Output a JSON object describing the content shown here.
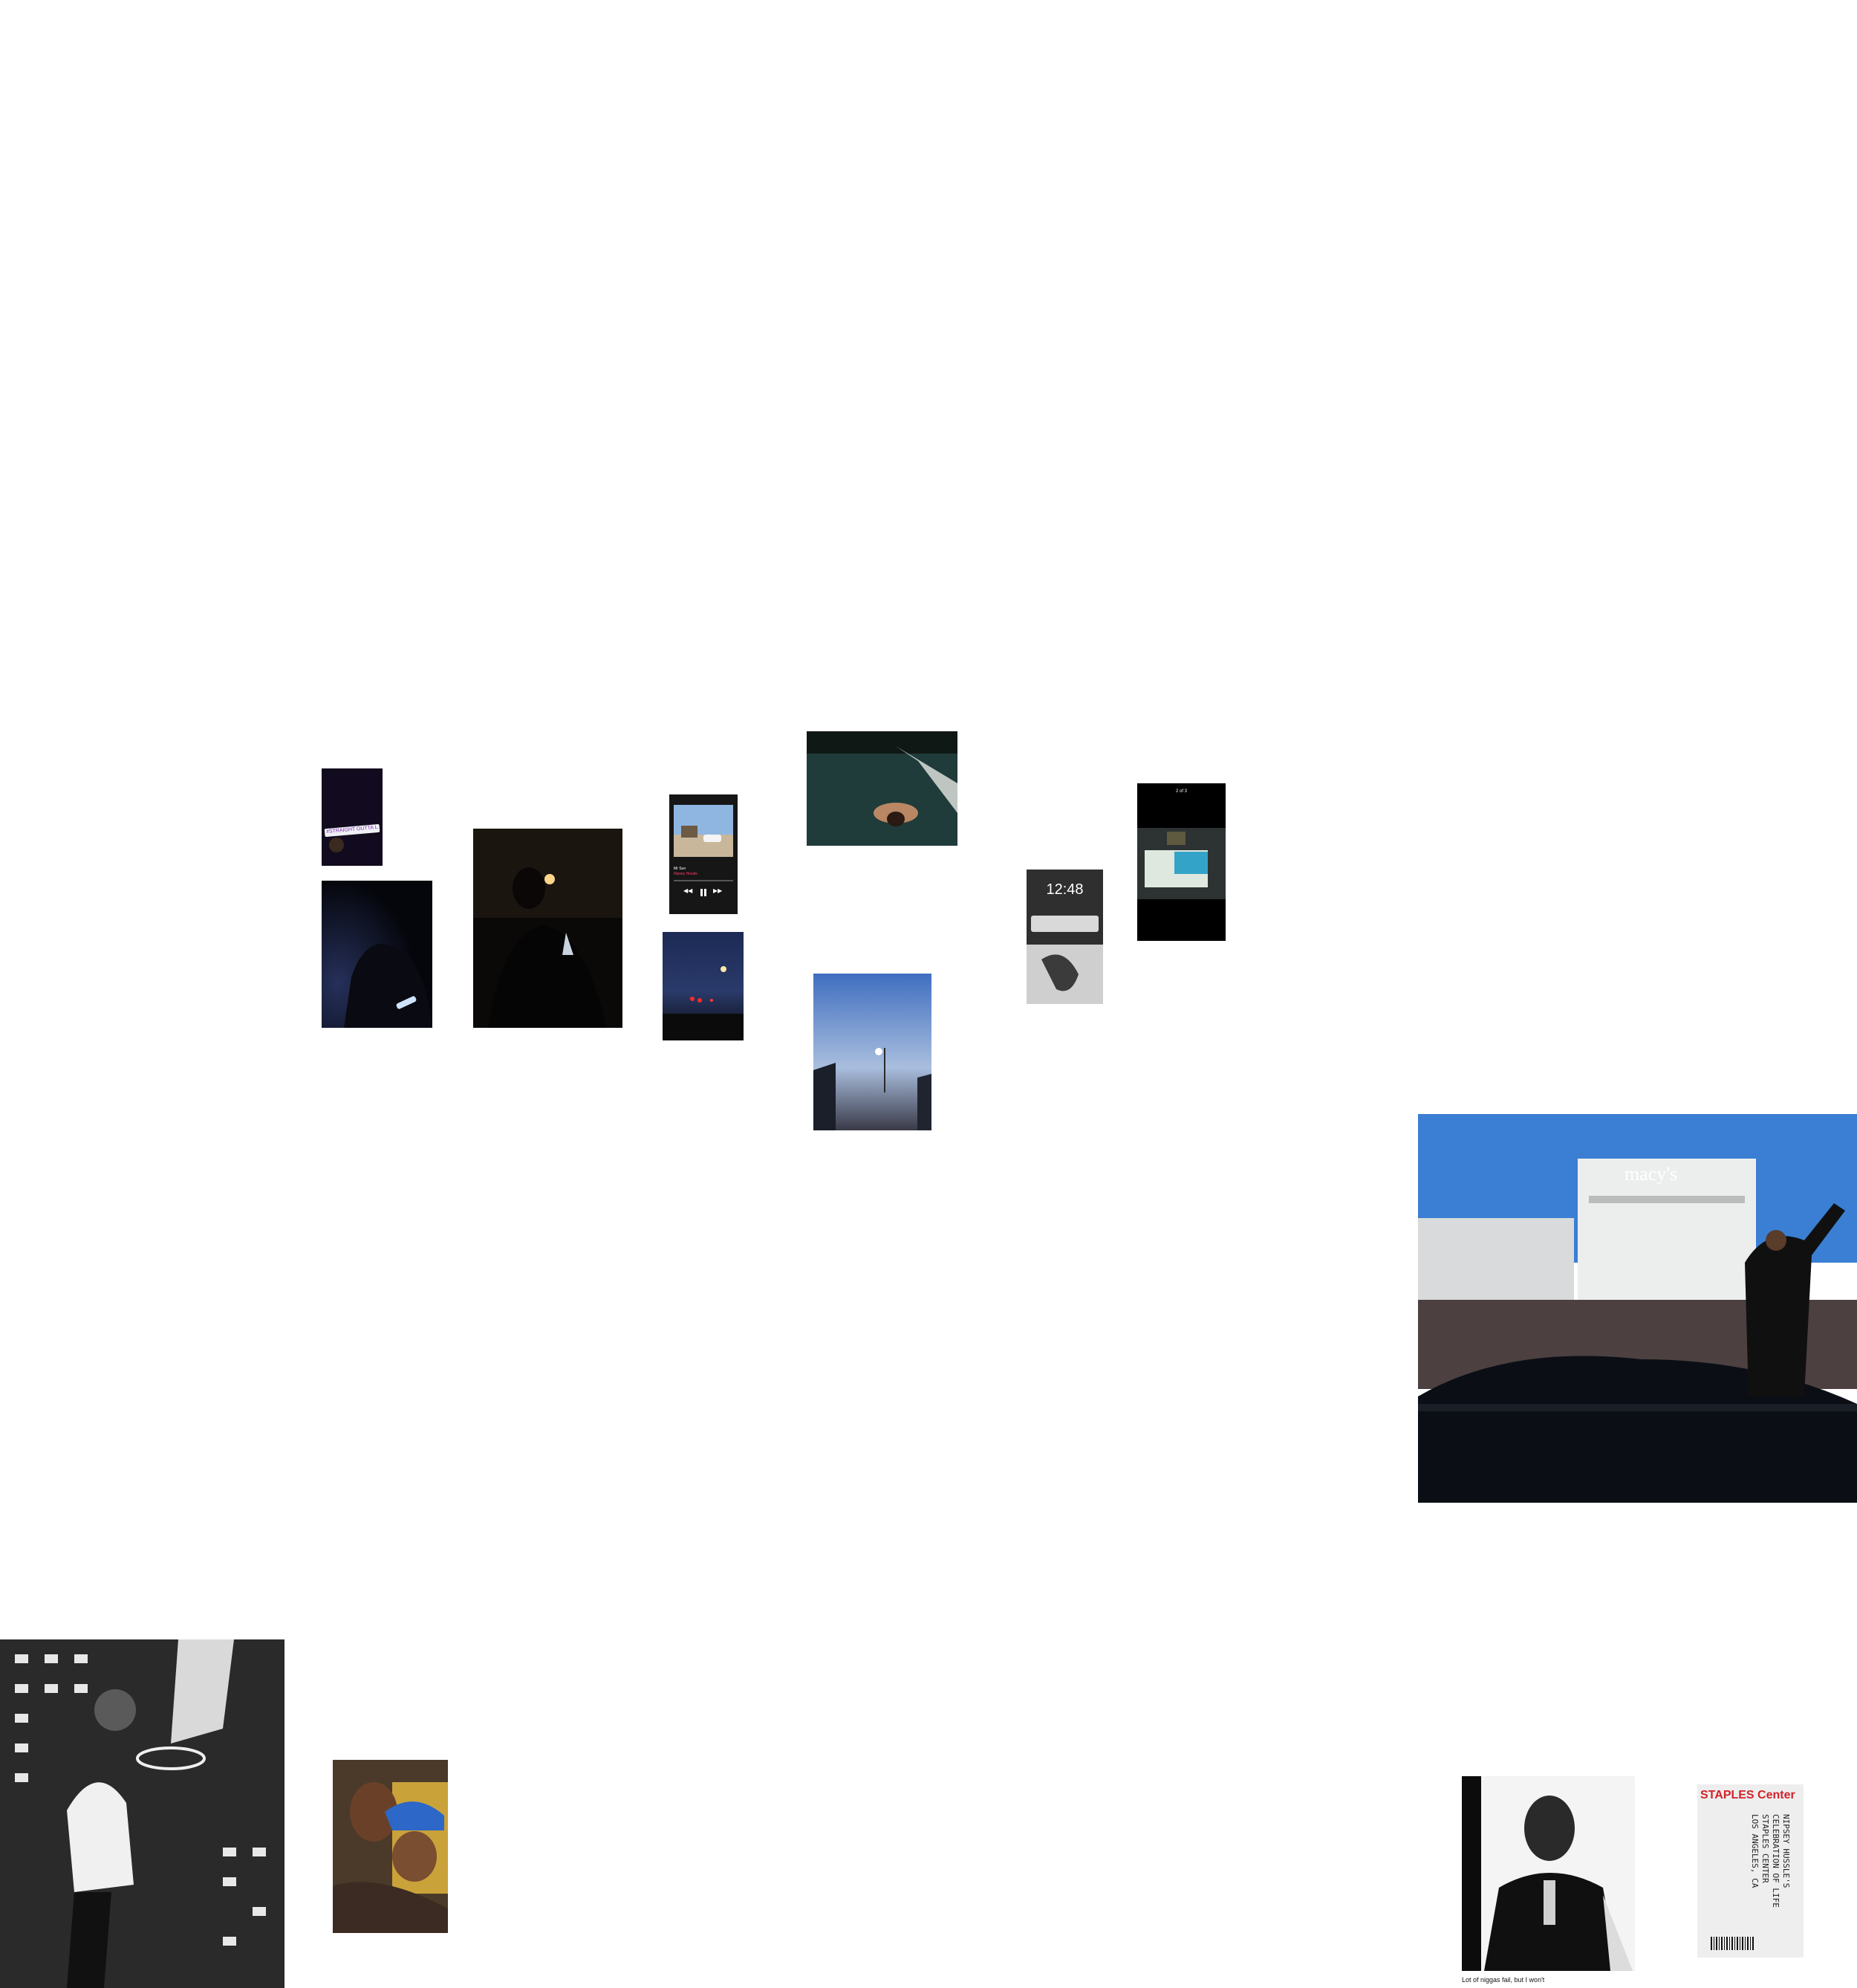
{
  "photos": {
    "story_stickers": {
      "sticker_text": "#STRAIGHT OUTTA LA STORIES"
    },
    "music_player": {
      "track_title": "Mr Sun",
      "track_artist": "Nipsey Hussle",
      "play_state": "paused"
    },
    "lockscreen": {
      "time": "12:48"
    },
    "phone_album": {
      "counter": "2 of 3"
    },
    "parade": {
      "store_sign": "macy's"
    },
    "ticket": {
      "header": "STAPLES Center",
      "line1": "NIPSEY HUSSLE'S",
      "line2": "CELEBRATION OF LIFE",
      "line3": "STAPLES CENTER",
      "line4": "LOS ANGELES, CA"
    },
    "portrait": {
      "caption": "Lot of niggas fail, but I won't"
    }
  }
}
